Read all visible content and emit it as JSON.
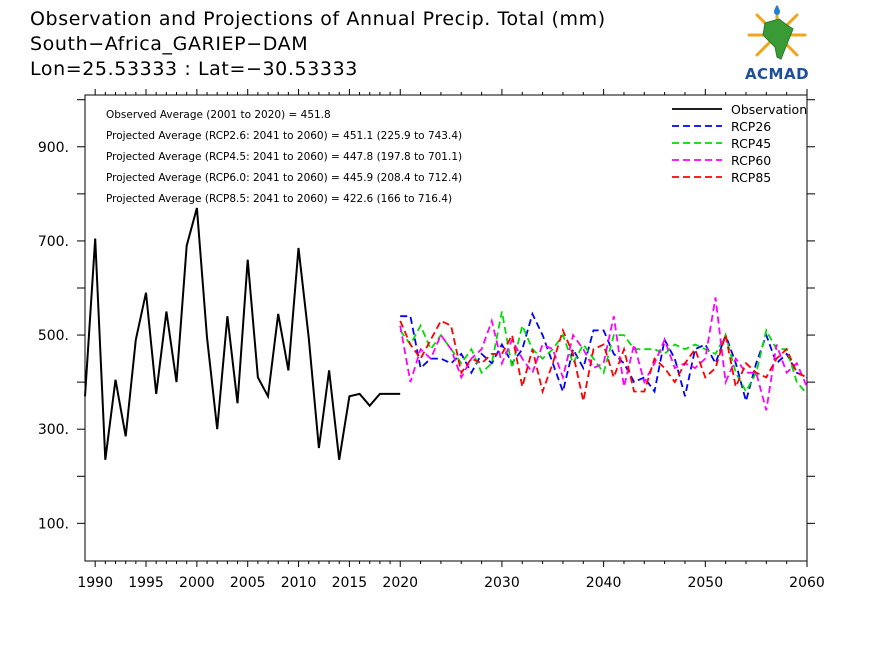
{
  "title": {
    "line1": "Observation and Projections of Annual Precip. Total (mm)",
    "line2": "South−Africa_GARIEP−DAM",
    "line3": "Lon=25.53333 : Lat=−30.53333"
  },
  "logo": {
    "text": "ACMAD",
    "color": "#1f4f9a",
    "accent": "#f2a41a",
    "icon": "africa-map-logo-icon"
  },
  "chart_data": {
    "type": "line",
    "xlim": [
      1989,
      2060
    ],
    "ylim": [
      20,
      1010
    ],
    "x_ticks": [
      {
        "value": 1990,
        "label": "1990"
      },
      {
        "value": 1995,
        "label": "1995"
      },
      {
        "value": 2000,
        "label": "2000"
      },
      {
        "value": 2005,
        "label": "2005"
      },
      {
        "value": 2010,
        "label": "2010"
      },
      {
        "value": 2015,
        "label": "2015"
      },
      {
        "value": 2020,
        "label": "2020"
      },
      {
        "value": 2030,
        "label": "2030"
      },
      {
        "value": 2040,
        "label": "2040"
      },
      {
        "value": 2050,
        "label": "2050"
      },
      {
        "value": 2060,
        "label": "2060"
      }
    ],
    "y_ticks": [
      {
        "value": 100,
        "label": "100."
      },
      {
        "value": 300,
        "label": "300."
      },
      {
        "value": 500,
        "label": "500."
      },
      {
        "value": 700,
        "label": "700."
      },
      {
        "value": 900,
        "label": "900."
      }
    ],
    "y_minor_ticks": [
      200,
      400,
      600,
      800,
      1000
    ],
    "annotations": [
      "Observed Average (2001 to 2020) = 451.8",
      "Projected Average (RCP2.6: 2041 to 2060) = 451.1 (225.9 to 743.4)",
      "Projected Average (RCP4.5: 2041 to 2060) = 447.8 (197.8 to 701.1)",
      "Projected Average (RCP6.0: 2041 to 2060) = 445.9 (208.4 to 712.4)",
      "Projected Average (RCP8.5: 2041 to 2060) = 422.6 (166 to 716.4)"
    ],
    "legend_position": "top-right",
    "series": [
      {
        "name": "Observation",
        "color": "#000000",
        "dash": "solid",
        "x": [
          1989,
          1990,
          1991,
          1992,
          1993,
          1994,
          1995,
          1996,
          1997,
          1998,
          1999,
          2000,
          2001,
          2002,
          2003,
          2004,
          2005,
          2006,
          2007,
          2008,
          2009,
          2010,
          2011,
          2012,
          2013,
          2014,
          2015,
          2016,
          2017,
          2018,
          2019,
          2020
        ],
        "values": [
          370,
          705,
          235,
          405,
          285,
          490,
          590,
          375,
          550,
          400,
          690,
          770,
          495,
          300,
          540,
          355,
          660,
          410,
          370,
          545,
          425,
          685,
          495,
          260,
          425,
          235,
          370,
          375,
          350,
          375,
          375,
          375
        ]
      },
      {
        "name": "RCP26",
        "color": "#0000ff",
        "dash": "dashed",
        "x": [
          2020,
          2021,
          2022,
          2023,
          2024,
          2025,
          2026,
          2027,
          2028,
          2029,
          2030,
          2031,
          2032,
          2033,
          2034,
          2035,
          2036,
          2037,
          2038,
          2039,
          2040,
          2041,
          2042,
          2043,
          2044,
          2045,
          2046,
          2047,
          2048,
          2049,
          2050,
          2051,
          2052,
          2053,
          2054,
          2055,
          2056,
          2057,
          2058,
          2059,
          2060
        ],
        "values": [
          540,
          540,
          430,
          450,
          450,
          440,
          460,
          420,
          460,
          440,
          480,
          440,
          470,
          545,
          500,
          440,
          380,
          470,
          430,
          510,
          510,
          460,
          440,
          400,
          410,
          380,
          490,
          450,
          370,
          470,
          480,
          440,
          500,
          440,
          360,
          440,
          500,
          440,
          460,
          420,
          410
        ]
      },
      {
        "name": "RCP45",
        "color": "#00dd00",
        "dash": "dashed",
        "x": [
          2020,
          2021,
          2022,
          2023,
          2024,
          2025,
          2026,
          2027,
          2028,
          2029,
          2030,
          2031,
          2032,
          2033,
          2034,
          2035,
          2036,
          2037,
          2038,
          2039,
          2040,
          2041,
          2042,
          2043,
          2044,
          2045,
          2046,
          2047,
          2048,
          2049,
          2050,
          2051,
          2052,
          2053,
          2054,
          2055,
          2056,
          2057,
          2058,
          2059,
          2060
        ],
        "values": [
          510,
          480,
          520,
          470,
          500,
          470,
          440,
          470,
          420,
          440,
          550,
          430,
          520,
          470,
          450,
          470,
          500,
          440,
          480,
          450,
          420,
          500,
          500,
          470,
          470,
          470,
          460,
          480,
          470,
          480,
          470,
          460,
          500,
          420,
          380,
          420,
          510,
          470,
          470,
          400,
          375
        ]
      },
      {
        "name": "RCP60",
        "color": "#ff00ff",
        "dash": "dashed",
        "x": [
          2020,
          2021,
          2022,
          2023,
          2024,
          2025,
          2026,
          2027,
          2028,
          2029,
          2030,
          2031,
          2032,
          2033,
          2034,
          2035,
          2036,
          2037,
          2038,
          2039,
          2040,
          2041,
          2042,
          2043,
          2044,
          2045,
          2046,
          2047,
          2048,
          2049,
          2050,
          2051,
          2052,
          2053,
          2054,
          2055,
          2056,
          2057,
          2058,
          2059,
          2060
        ],
        "values": [
          520,
          400,
          470,
          450,
          500,
          470,
          410,
          450,
          470,
          530,
          440,
          490,
          450,
          420,
          480,
          470,
          410,
          500,
          470,
          430,
          440,
          540,
          390,
          480,
          400,
          440,
          490,
          430,
          440,
          430,
          450,
          580,
          400,
          450,
          420,
          420,
          340,
          480,
          420,
          440,
          390
        ]
      },
      {
        "name": "RCP85",
        "color": "#ff0000",
        "dash": "dashed",
        "x": [
          2020,
          2021,
          2022,
          2023,
          2024,
          2025,
          2026,
          2027,
          2028,
          2029,
          2030,
          2031,
          2032,
          2033,
          2034,
          2035,
          2036,
          2037,
          2038,
          2039,
          2040,
          2041,
          2042,
          2043,
          2044,
          2045,
          2046,
          2047,
          2048,
          2049,
          2050,
          2051,
          2052,
          2053,
          2054,
          2055,
          2056,
          2057,
          2058,
          2059,
          2060
        ],
        "values": [
          530,
          480,
          450,
          490,
          530,
          520,
          420,
          450,
          440,
          460,
          460,
          500,
          390,
          470,
          380,
          440,
          510,
          460,
          360,
          470,
          480,
          410,
          470,
          380,
          380,
          450,
          430,
          400,
          440,
          470,
          410,
          430,
          500,
          390,
          440,
          420,
          410,
          450,
          470,
          420,
          410
        ]
      }
    ]
  }
}
